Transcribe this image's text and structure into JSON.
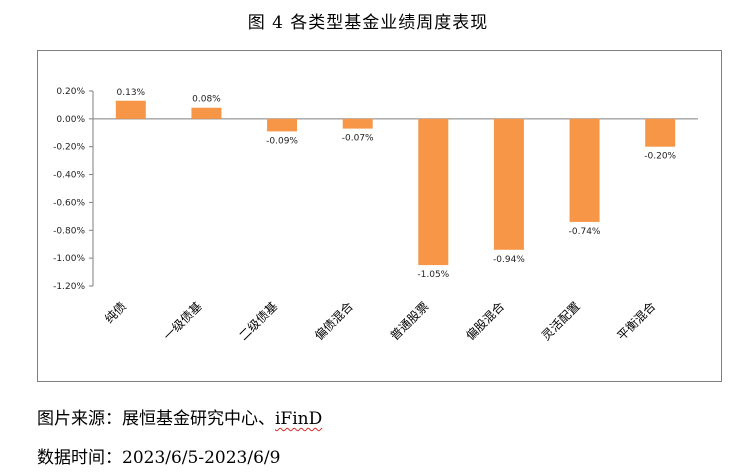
{
  "title": "图 4 各类型基金业绩周度表现",
  "source": {
    "label": "图片来源：",
    "text": "展恒基金研究中心、",
    "brand": "iFinD"
  },
  "date": {
    "label": "数据时间：",
    "value": "2023/6/5-2023/6/9"
  },
  "colors": {
    "bar": "#F79646",
    "axis": "#7f7f7f"
  },
  "chart_data": {
    "type": "bar",
    "title": "",
    "xlabel": "",
    "ylabel": "",
    "categories": [
      "纯债",
      "一级债基",
      "二级债基",
      "偏债混合",
      "普通股票",
      "偏股混合",
      "灵活配置",
      "平衡混合"
    ],
    "values": [
      0.13,
      0.08,
      -0.09,
      -0.07,
      -1.05,
      -0.94,
      -0.74,
      -0.2
    ],
    "value_labels": [
      "0.13%",
      "0.08%",
      "-0.09%",
      "-0.07%",
      "-1.05%",
      "-0.94%",
      "-0.74%",
      "-0.20%"
    ],
    "ylim": [
      -1.2,
      0.2
    ],
    "yticks": [
      0.2,
      0.0,
      -0.2,
      -0.4,
      -0.6,
      -0.8,
      -1.0,
      -1.2
    ],
    "ytick_labels": [
      "0.20%",
      "0.00%",
      "-0.20%",
      "-0.40%",
      "-0.60%",
      "-0.80%",
      "-1.00%",
      "-1.20%"
    ],
    "grid": false,
    "legend": "none"
  }
}
